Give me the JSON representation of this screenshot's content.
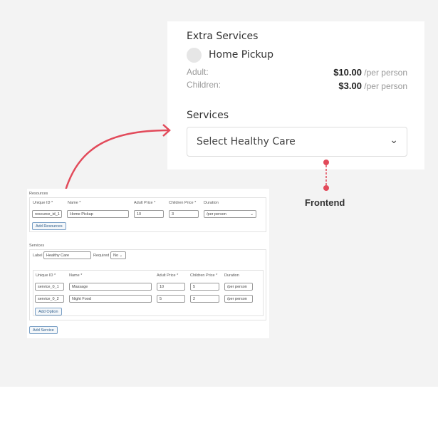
{
  "frontend": {
    "extra_title": "Extra Services",
    "service_name": "Home Pickup",
    "adult_label": "Adult:",
    "adult_price": "$10.00",
    "children_label": "Children:",
    "children_price": "$3.00",
    "per": "/per person",
    "services_title": "Services",
    "select_value": "Select Healthy Care",
    "caption": "Frontend"
  },
  "accent": "#e24a5a",
  "admin": {
    "resources_title": "Resources",
    "columns": [
      "Unique ID *",
      "Name *",
      "Adult Price *",
      "Children Price *",
      "Duration"
    ],
    "resource_row": {
      "id": "resource_id_1",
      "name": "Home Pickup",
      "adult": "10",
      "children": "3",
      "duration": "/per person"
    },
    "add_resources": "Add Resources",
    "services_title": "Services",
    "label_text": "Label *",
    "label_value": "Healthy Care",
    "required_text": "Required",
    "required_value": "No",
    "service_rows": [
      {
        "id": "service_0_1",
        "name": "Massage",
        "adult": "10",
        "children": "5",
        "duration": "/per person"
      },
      {
        "id": "service_0_2",
        "name": "Night Food",
        "adult": "5",
        "children": "2",
        "duration": "/per person"
      }
    ],
    "add_option": "Add Option",
    "add_service": "Add Service"
  }
}
